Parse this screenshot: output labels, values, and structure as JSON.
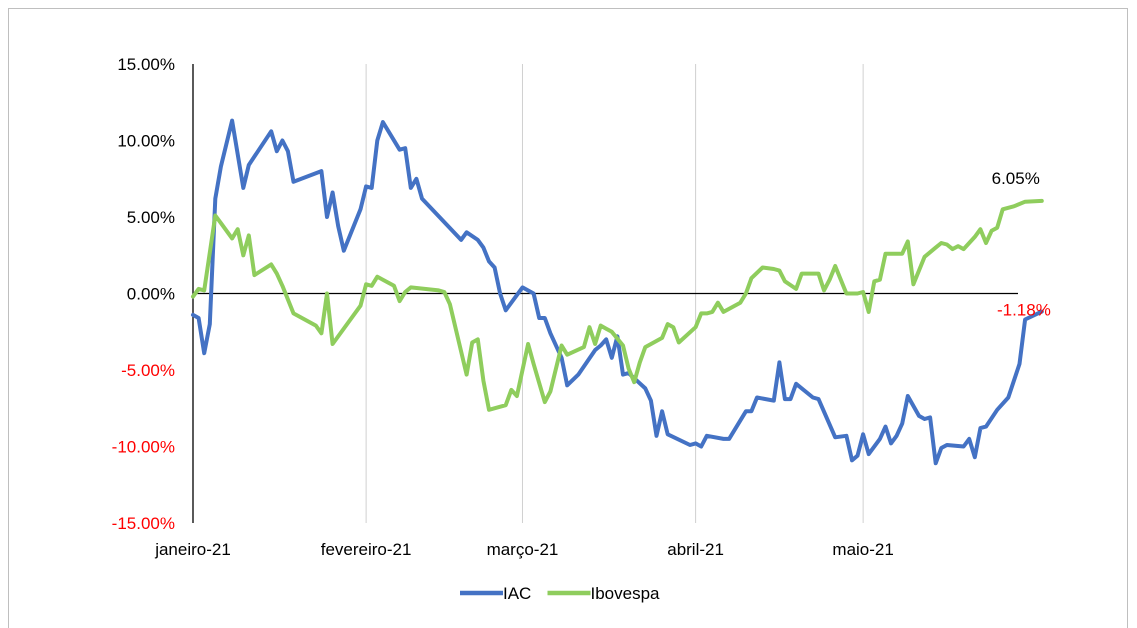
{
  "colors": {
    "iac": "#4472c4",
    "ibovespa": "#8fcd5d",
    "negative_label": "#ff0000",
    "grid": "#d0d0d0"
  },
  "chart_data": {
    "type": "line",
    "title": "",
    "xlabel": "",
    "ylabel": "",
    "ylim": [
      -0.15,
      0.15
    ],
    "y_ticks": [
      {
        "value": 0.15,
        "label": "15.00%",
        "negative": false
      },
      {
        "value": 0.1,
        "label": "10.00%",
        "negative": false
      },
      {
        "value": 0.05,
        "label": "5.00%",
        "negative": false
      },
      {
        "value": 0.0,
        "label": "0.00%",
        "negative": false
      },
      {
        "value": -0.05,
        "label": "-5.00%",
        "negative": true
      },
      {
        "value": -0.1,
        "label": "-10.00%",
        "negative": true
      },
      {
        "value": -0.15,
        "label": "-15.00%",
        "negative": true
      }
    ],
    "x_domain": [
      "2021-01-01",
      "2021-05-26"
    ],
    "x_ticks": [
      {
        "date": "2021-01-01",
        "label": "janeiro-21"
      },
      {
        "date": "2021-02-01",
        "label": "fevereiro-21"
      },
      {
        "date": "2021-03-01",
        "label": "março-21"
      },
      {
        "date": "2021-04-01",
        "label": "abril-21"
      },
      {
        "date": "2021-05-01",
        "label": "maio-21"
      }
    ],
    "grid": "vertical",
    "legend_position": "bottom",
    "series": [
      {
        "name": "IAC",
        "color_key": "iac",
        "end_label": "-1.18%",
        "points": [
          [
            "2021-01-01",
            -0.014
          ],
          [
            "2021-01-02",
            -0.016
          ],
          [
            "2021-01-03",
            -0.039
          ],
          [
            "2021-01-04",
            -0.02
          ],
          [
            "2021-01-05",
            0.062
          ],
          [
            "2021-01-06",
            0.083
          ],
          [
            "2021-01-08",
            0.113
          ],
          [
            "2021-01-10",
            0.069
          ],
          [
            "2021-01-11",
            0.084
          ],
          [
            "2021-01-15",
            0.106
          ],
          [
            "2021-01-16",
            0.093
          ],
          [
            "2021-01-17",
            0.1
          ],
          [
            "2021-01-18",
            0.093
          ],
          [
            "2021-01-19",
            0.073
          ],
          [
            "2021-01-24",
            0.08
          ],
          [
            "2021-01-25",
            0.05
          ],
          [
            "2021-01-26",
            0.066
          ],
          [
            "2021-01-27",
            0.044
          ],
          [
            "2021-01-28",
            0.028
          ],
          [
            "2021-01-31",
            0.055
          ],
          [
            "2021-02-01",
            0.07
          ],
          [
            "2021-02-02",
            0.069
          ],
          [
            "2021-02-03",
            0.1
          ],
          [
            "2021-02-04",
            0.112
          ],
          [
            "2021-02-07",
            0.094
          ],
          [
            "2021-02-08",
            0.095
          ],
          [
            "2021-02-09",
            0.069
          ],
          [
            "2021-02-10",
            0.075
          ],
          [
            "2021-02-11",
            0.062
          ],
          [
            "2021-02-18",
            0.035
          ],
          [
            "2021-02-19",
            0.04
          ],
          [
            "2021-02-21",
            0.035
          ],
          [
            "2021-02-22",
            0.03
          ],
          [
            "2021-02-23",
            0.021
          ],
          [
            "2021-02-24",
            0.017
          ],
          [
            "2021-02-25",
            0.0
          ],
          [
            "2021-02-26",
            -0.011
          ],
          [
            "2021-02-27",
            -0.006
          ],
          [
            "2021-03-01",
            0.004
          ],
          [
            "2021-03-03",
            0.0
          ],
          [
            "2021-03-04",
            -0.016
          ],
          [
            "2021-03-05",
            -0.016
          ],
          [
            "2021-03-06",
            -0.026
          ],
          [
            "2021-03-08",
            -0.042
          ],
          [
            "2021-03-09",
            -0.06
          ],
          [
            "2021-03-11",
            -0.053
          ],
          [
            "2021-03-14",
            -0.037
          ],
          [
            "2021-03-15",
            -0.034
          ],
          [
            "2021-03-16",
            -0.03
          ],
          [
            "2021-03-17",
            -0.042
          ],
          [
            "2021-03-18",
            -0.028
          ],
          [
            "2021-03-19",
            -0.053
          ],
          [
            "2021-03-20",
            -0.052
          ],
          [
            "2021-03-23",
            -0.062
          ],
          [
            "2021-03-24",
            -0.07
          ],
          [
            "2021-03-25",
            -0.093
          ],
          [
            "2021-03-26",
            -0.077
          ],
          [
            "2021-03-27",
            -0.092
          ],
          [
            "2021-03-31",
            -0.099
          ],
          [
            "2021-04-01",
            -0.098
          ],
          [
            "2021-04-02",
            -0.1
          ],
          [
            "2021-04-03",
            -0.093
          ],
          [
            "2021-04-06",
            -0.095
          ],
          [
            "2021-04-07",
            -0.095
          ],
          [
            "2021-04-10",
            -0.077
          ],
          [
            "2021-04-11",
            -0.077
          ],
          [
            "2021-04-12",
            -0.068
          ],
          [
            "2021-04-15",
            -0.07
          ],
          [
            "2021-04-16",
            -0.045
          ],
          [
            "2021-04-17",
            -0.069
          ],
          [
            "2021-04-18",
            -0.069
          ],
          [
            "2021-04-19",
            -0.059
          ],
          [
            "2021-04-22",
            -0.068
          ],
          [
            "2021-04-23",
            -0.069
          ],
          [
            "2021-04-26",
            -0.094
          ],
          [
            "2021-04-28",
            -0.093
          ],
          [
            "2021-04-29",
            -0.109
          ],
          [
            "2021-04-30",
            -0.106
          ],
          [
            "2021-05-01",
            -0.092
          ],
          [
            "2021-05-02",
            -0.105
          ],
          [
            "2021-05-04",
            -0.095
          ],
          [
            "2021-05-05",
            -0.087
          ],
          [
            "2021-05-06",
            -0.098
          ],
          [
            "2021-05-07",
            -0.093
          ],
          [
            "2021-05-08",
            -0.085
          ],
          [
            "2021-05-09",
            -0.067
          ],
          [
            "2021-05-11",
            -0.08
          ],
          [
            "2021-05-12",
            -0.082
          ],
          [
            "2021-05-13",
            -0.081
          ],
          [
            "2021-05-14",
            -0.111
          ],
          [
            "2021-05-15",
            -0.101
          ],
          [
            "2021-05-16",
            -0.099
          ],
          [
            "2021-05-19",
            -0.1
          ],
          [
            "2021-05-20",
            -0.095
          ],
          [
            "2021-05-21",
            -0.107
          ],
          [
            "2021-05-22",
            -0.088
          ],
          [
            "2021-05-23",
            -0.087
          ],
          [
            "2021-05-25",
            -0.076
          ],
          [
            "2021-05-27",
            -0.068
          ],
          [
            "2021-05-29",
            -0.046
          ],
          [
            "2021-05-30",
            -0.017
          ],
          [
            "2021-06-02",
            -0.0118
          ]
        ]
      },
      {
        "name": "Ibovespa",
        "color_key": "ibovespa",
        "end_label": "6.05%",
        "points": [
          [
            "2021-01-01",
            -0.002
          ],
          [
            "2021-01-02",
            0.003
          ],
          [
            "2021-01-03",
            0.002
          ],
          [
            "2021-01-05",
            0.051
          ],
          [
            "2021-01-06",
            0.046
          ],
          [
            "2021-01-08",
            0.036
          ],
          [
            "2021-01-09",
            0.042
          ],
          [
            "2021-01-10",
            0.025
          ],
          [
            "2021-01-11",
            0.038
          ],
          [
            "2021-01-12",
            0.012
          ],
          [
            "2021-01-15",
            0.019
          ],
          [
            "2021-01-16",
            0.013
          ],
          [
            "2021-01-17",
            0.005
          ],
          [
            "2021-01-19",
            -0.013
          ],
          [
            "2021-01-23",
            -0.021
          ],
          [
            "2021-01-24",
            -0.026
          ],
          [
            "2021-01-25",
            0.0
          ],
          [
            "2021-01-26",
            -0.033
          ],
          [
            "2021-01-31",
            -0.008
          ],
          [
            "2021-02-01",
            0.006
          ],
          [
            "2021-02-02",
            0.005
          ],
          [
            "2021-02-03",
            0.011
          ],
          [
            "2021-02-06",
            0.005
          ],
          [
            "2021-02-07",
            -0.005
          ],
          [
            "2021-02-08",
            0.001
          ],
          [
            "2021-02-09",
            0.004
          ],
          [
            "2021-02-14",
            0.002
          ],
          [
            "2021-02-15",
            0.001
          ],
          [
            "2021-02-16",
            -0.007
          ],
          [
            "2021-02-19",
            -0.053
          ],
          [
            "2021-02-20",
            -0.032
          ],
          [
            "2021-02-21",
            -0.03
          ],
          [
            "2021-02-22",
            -0.057
          ],
          [
            "2021-02-23",
            -0.076
          ],
          [
            "2021-02-26",
            -0.073
          ],
          [
            "2021-02-27",
            -0.063
          ],
          [
            "2021-02-28",
            -0.067
          ],
          [
            "2021-03-02",
            -0.033
          ],
          [
            "2021-03-03",
            -0.046
          ],
          [
            "2021-03-05",
            -0.071
          ],
          [
            "2021-03-06",
            -0.064
          ],
          [
            "2021-03-08",
            -0.034
          ],
          [
            "2021-03-09",
            -0.04
          ],
          [
            "2021-03-12",
            -0.035
          ],
          [
            "2021-03-13",
            -0.022
          ],
          [
            "2021-03-14",
            -0.033
          ],
          [
            "2021-03-15",
            -0.021
          ],
          [
            "2021-03-16",
            -0.023
          ],
          [
            "2021-03-17",
            -0.025
          ],
          [
            "2021-03-19",
            -0.034
          ],
          [
            "2021-03-20",
            -0.049
          ],
          [
            "2021-03-21",
            -0.058
          ],
          [
            "2021-03-22",
            -0.045
          ],
          [
            "2021-03-23",
            -0.035
          ],
          [
            "2021-03-26",
            -0.029
          ],
          [
            "2021-03-27",
            -0.02
          ],
          [
            "2021-03-28",
            -0.022
          ],
          [
            "2021-03-29",
            -0.032
          ],
          [
            "2021-04-01",
            -0.022
          ],
          [
            "2021-04-02",
            -0.013
          ],
          [
            "2021-04-03",
            -0.013
          ],
          [
            "2021-04-04",
            -0.012
          ],
          [
            "2021-04-05",
            -0.006
          ],
          [
            "2021-04-06",
            -0.012
          ],
          [
            "2021-04-09",
            -0.006
          ],
          [
            "2021-04-10",
            0.0
          ],
          [
            "2021-04-11",
            0.01
          ],
          [
            "2021-04-13",
            0.017
          ],
          [
            "2021-04-15",
            0.016
          ],
          [
            "2021-04-16",
            0.015
          ],
          [
            "2021-04-17",
            0.008
          ],
          [
            "2021-04-19",
            0.003
          ],
          [
            "2021-04-20",
            0.013
          ],
          [
            "2021-04-23",
            0.013
          ],
          [
            "2021-04-24",
            0.002
          ],
          [
            "2021-04-25",
            0.009
          ],
          [
            "2021-04-26",
            0.018
          ],
          [
            "2021-04-28",
            0.0
          ],
          [
            "2021-04-30",
            0.0
          ],
          [
            "2021-05-01",
            0.001
          ],
          [
            "2021-05-02",
            -0.012
          ],
          [
            "2021-05-03",
            0.008
          ],
          [
            "2021-05-04",
            0.009
          ],
          [
            "2021-05-05",
            0.026
          ],
          [
            "2021-05-07",
            0.026
          ],
          [
            "2021-05-08",
            0.026
          ],
          [
            "2021-05-09",
            0.034
          ],
          [
            "2021-05-10",
            0.006
          ],
          [
            "2021-05-12",
            0.024
          ],
          [
            "2021-05-14",
            0.03
          ],
          [
            "2021-05-15",
            0.033
          ],
          [
            "2021-05-16",
            0.032
          ],
          [
            "2021-05-17",
            0.029
          ],
          [
            "2021-05-18",
            0.031
          ],
          [
            "2021-05-19",
            0.029
          ],
          [
            "2021-05-21",
            0.037
          ],
          [
            "2021-05-22",
            0.042
          ],
          [
            "2021-05-23",
            0.033
          ],
          [
            "2021-05-24",
            0.041
          ],
          [
            "2021-05-25",
            0.043
          ],
          [
            "2021-05-26",
            0.055
          ],
          [
            "2021-05-28",
            0.057
          ],
          [
            "2021-05-30",
            0.06
          ],
          [
            "2021-06-02",
            0.0605
          ]
        ]
      }
    ]
  }
}
